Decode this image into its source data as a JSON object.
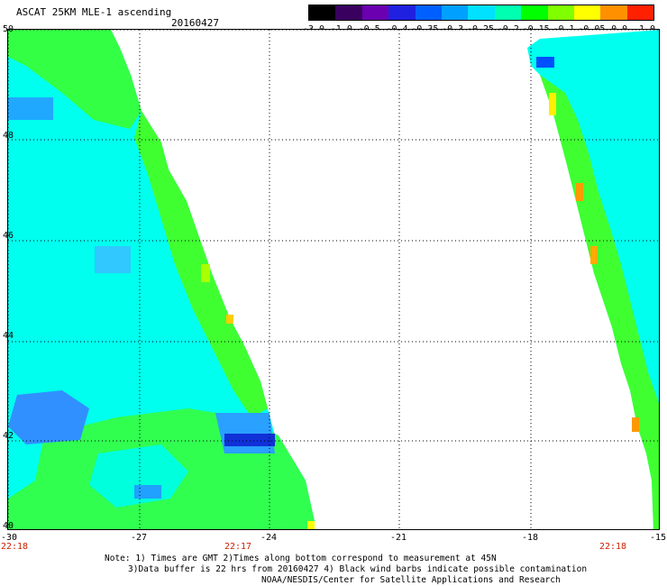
{
  "header": {
    "title": "ASCAT 25KM MLE-1 ascending",
    "date": "20160427"
  },
  "colorbar": {
    "labels": [
      "-3.0",
      "-1.0",
      "-0.5",
      "-0.4",
      "-0.35",
      "-0.3",
      "-0.25",
      "-0.2",
      "-0.15",
      "-0.1",
      "-0.05",
      "0.0",
      "1.0"
    ],
    "colors": [
      "#000000",
      "#3a0060",
      "#6a00b0",
      "#2020e0",
      "#0060ff",
      "#00a0ff",
      "#00e0ff",
      "#00ffb0",
      "#00ff00",
      "#80ff00",
      "#ffff00",
      "#ff9000",
      "#ff2000"
    ]
  },
  "axes": {
    "y_ticks": [
      "50",
      "48",
      "46",
      "44",
      "42",
      "40"
    ],
    "x_ticks": [
      "-30",
      "-27",
      "-24",
      "-21",
      "-18",
      "-15"
    ],
    "times": [
      "22:18",
      "22:17",
      "22:18"
    ]
  },
  "notes": {
    "line1": "Note: 1) Times are GMT 2)Times along bottom correspond to measurement at 45N",
    "line2": "3)Data buffer is 22 hrs from 20160427 4) Black wind barbs indicate possible contamination",
    "line3": "NOAA/NESDIS/Center for Satellite Applications and Research"
  }
}
